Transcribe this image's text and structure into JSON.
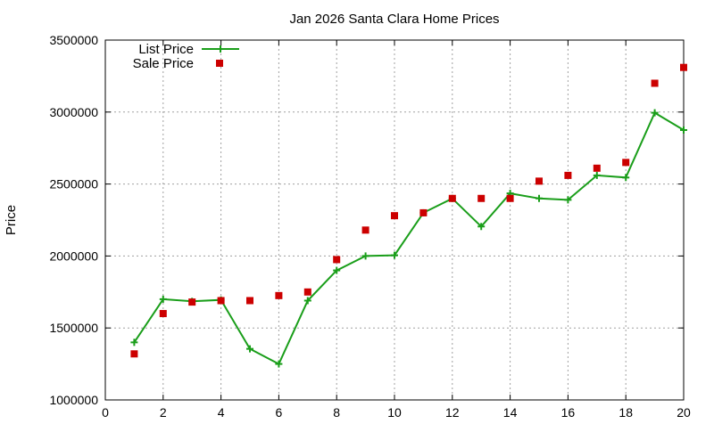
{
  "chart_data": {
    "type": "line",
    "title": "Jan 2026 Santa Clara Home Prices",
    "xlabel": "",
    "ylabel": "Price",
    "xlim": [
      0,
      20
    ],
    "ylim": [
      1000000,
      3500000
    ],
    "xticks": [
      0,
      2,
      4,
      6,
      8,
      10,
      12,
      14,
      16,
      18,
      20
    ],
    "yticks": [
      1000000,
      1500000,
      2000000,
      2500000,
      3000000,
      3500000
    ],
    "xtick_labels": [
      "0",
      "2",
      "4",
      "6",
      "8",
      "10",
      "12",
      "14",
      "16",
      "18",
      "20"
    ],
    "ytick_labels": [
      "1000000",
      "1500000",
      "2000000",
      "2500000",
      "3000000",
      "3500000"
    ],
    "grid": true,
    "legend_position": "top-left",
    "series": [
      {
        "name": "List Price",
        "style": "line-with-plus-markers",
        "color": "#1a9e1a",
        "x": [
          1,
          2,
          3,
          4,
          5,
          6,
          7,
          8,
          9,
          10,
          11,
          12,
          13,
          14,
          15,
          16,
          17,
          18,
          19,
          20
        ],
        "y": [
          1400000,
          1700000,
          1685000,
          1695000,
          1355000,
          1250000,
          1690000,
          1900000,
          2000000,
          2005000,
          2300000,
          2400000,
          2205000,
          2435000,
          2400000,
          2390000,
          2560000,
          2545000,
          2995000,
          2875000
        ]
      },
      {
        "name": "Sale Price",
        "style": "square-markers",
        "color": "#cc0000",
        "x": [
          1,
          2,
          3,
          4,
          5,
          6,
          7,
          8,
          9,
          10,
          11,
          12,
          13,
          14,
          15,
          16,
          17,
          18,
          19,
          20
        ],
        "y": [
          1320000,
          1600000,
          1680000,
          1690000,
          1690000,
          1725000,
          1750000,
          1975000,
          2180000,
          2280000,
          2300000,
          2400000,
          2400000,
          2400000,
          2520000,
          2560000,
          2610000,
          2650000,
          3200000,
          3310000
        ]
      }
    ]
  }
}
